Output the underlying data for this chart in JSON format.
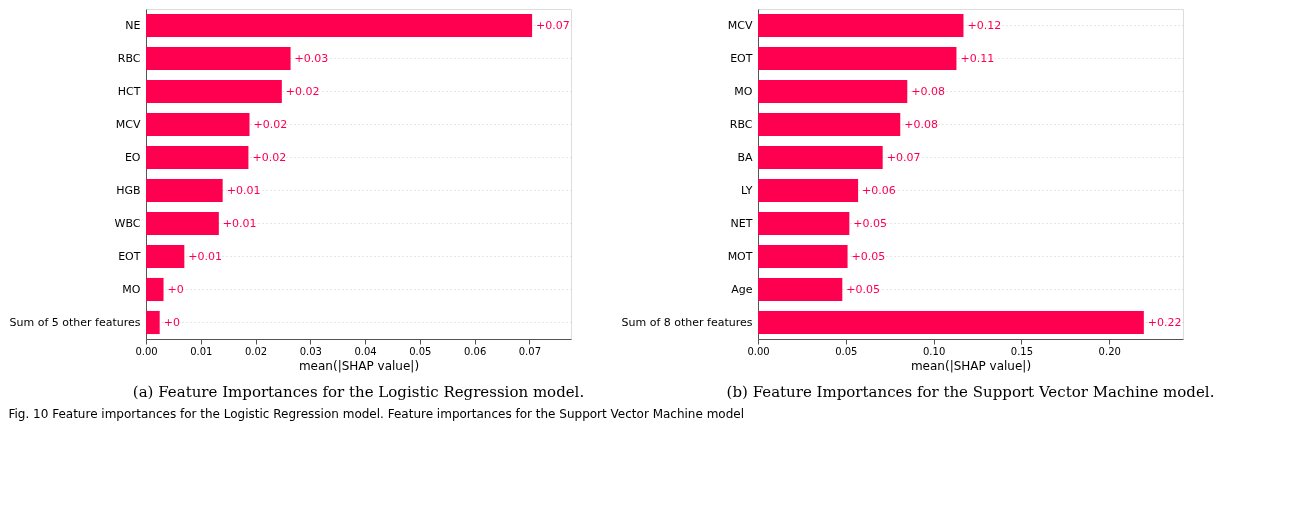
{
  "chart_data": [
    {
      "type": "bar",
      "orientation": "horizontal",
      "categories": [
        "NE",
        "RBC",
        "HCT",
        "MCV",
        "EO",
        "HGB",
        "WBC",
        "EOT",
        "MO",
        "Sum of 5 other features"
      ],
      "values": [
        0.0705,
        0.0264,
        0.0248,
        0.0189,
        0.0187,
        0.014,
        0.0133,
        0.007,
        0.0032,
        0.0025
      ],
      "value_labels": [
        "+0.07",
        "+0.03",
        "+0.02",
        "+0.02",
        "+0.02",
        "+0.01",
        "+0.01",
        "+0.01",
        "+0",
        "+0"
      ],
      "color": "#ff0051",
      "xlabel": "mean(|SHAP value|)",
      "xlim": [
        0,
        0.0776
      ],
      "xticks": [
        {
          "value": 0,
          "label": "0.00"
        },
        {
          "value": 0.01,
          "label": "0.01"
        },
        {
          "value": 0.02,
          "label": "0.02"
        },
        {
          "value": 0.03,
          "label": "0.03"
        },
        {
          "value": 0.04,
          "label": "0.04"
        },
        {
          "value": 0.05,
          "label": "0.05"
        },
        {
          "value": 0.06,
          "label": "0.06"
        },
        {
          "value": 0.07,
          "label": "0.07"
        }
      ],
      "grid": "y",
      "line_style": "dotted",
      "annotations": [
        "(a) Feature Importances for the Logistic Regression model.",
        "Fig. 10 Feature importances for the Logistic Regression model. Feature importances for the Support Vector Machine model"
      ]
    },
    {
      "type": "bar",
      "orientation": "horizontal",
      "categories": [
        "MCV",
        "EOT",
        "MO",
        "RBC",
        "BA",
        "LY",
        "NET",
        "MOT",
        "Age",
        "Sum of 8 other features"
      ],
      "values": [
        0.117,
        0.113,
        0.085,
        0.081,
        0.071,
        0.057,
        0.052,
        0.051,
        0.048,
        0.2197
      ],
      "value_labels": [
        "+0.12",
        "+0.11",
        "+0.08",
        "+0.08",
        "+0.07",
        "+0.06",
        "+0.05",
        "+0.05",
        "+0.05",
        "+0.22"
      ],
      "color": "#ff0051",
      "xlabel": "mean(|SHAP value|)",
      "xlim": [
        0,
        0.242
      ],
      "xticks": [
        {
          "value": 0,
          "label": "0.00"
        },
        {
          "value": 0.05,
          "label": "0.05"
        },
        {
          "value": 0.1,
          "label": "0.10"
        },
        {
          "value": 0.15,
          "label": "0.15"
        },
        {
          "value": 0.2,
          "label": "0.20"
        }
      ],
      "grid": "y",
      "line_style": "dotted",
      "annotations": [
        "(b) Feature Importances for the Support Vector Machine model."
      ]
    }
  ]
}
